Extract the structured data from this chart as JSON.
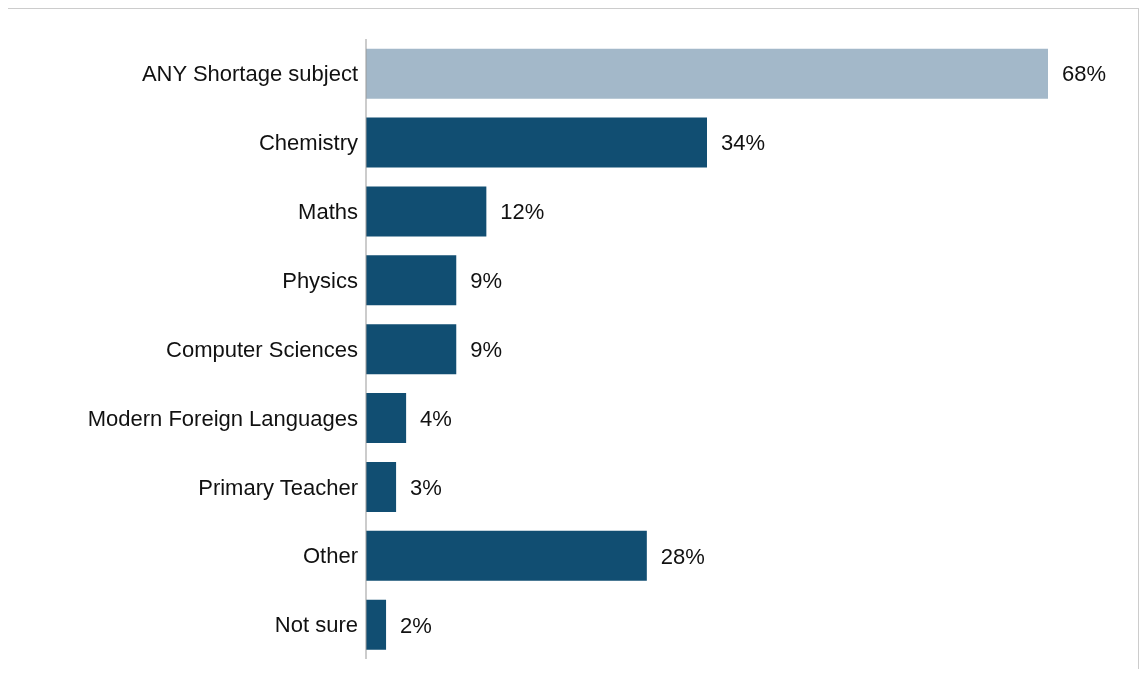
{
  "chart_data": {
    "type": "bar",
    "orientation": "horizontal",
    "categories": [
      "ANY Shortage subject",
      "Chemistry",
      "Maths",
      "Physics",
      "Computer Sciences",
      "Modern Foreign Languages",
      "Primary Teacher",
      "Other",
      "Not sure"
    ],
    "values": [
      68,
      34,
      12,
      9,
      9,
      4,
      3,
      28,
      2
    ],
    "colors": [
      "#a3b8c9",
      "#114e72",
      "#114e72",
      "#114e72",
      "#114e72",
      "#114e72",
      "#114e72",
      "#114e72",
      "#114e72"
    ],
    "value_labels": [
      "68%",
      "34%",
      "12%",
      "9%",
      "9%",
      "4%",
      "3%",
      "28%",
      "2%"
    ],
    "grid": false
  }
}
